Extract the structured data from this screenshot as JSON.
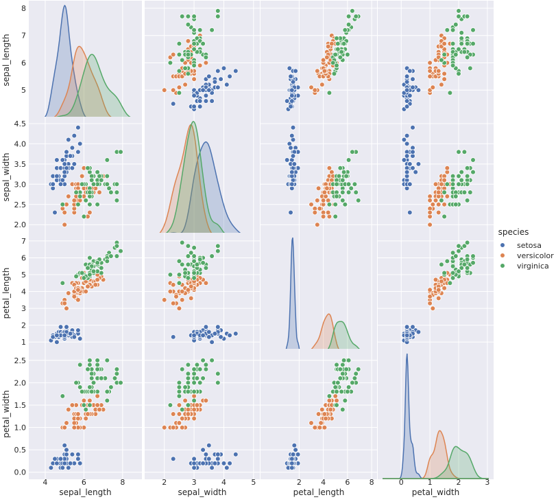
{
  "chart_data": {
    "type": "scatter",
    "variables": [
      "sepal_length",
      "sepal_width",
      "petal_length",
      "petal_width"
    ],
    "hue": "species",
    "legend": {
      "title": "species",
      "placement": "right",
      "entries": [
        "setosa",
        "versicolor",
        "virginica"
      ]
    },
    "grid": true,
    "colors": {
      "setosa": "#4c72b0",
      "versicolor": "#dd8452",
      "virginica": "#55a868",
      "panel_bg": "#eaeaf2"
    },
    "axes": {
      "sepal_length": {
        "ylim": [
          4.1,
          8.1
        ],
        "xlim": [
          3.4,
          8.75
        ],
        "ticks": [
          5,
          6,
          7,
          8
        ],
        "xticks": [
          4,
          6,
          8
        ]
      },
      "sepal_width": {
        "ylim": [
          1.8,
          4.55
        ],
        "xlim": [
          1.5,
          5.05
        ],
        "ticks": [
          2.0,
          2.5,
          3.0,
          3.5,
          4.0,
          4.5
        ],
        "xticks": [
          2,
          3,
          4,
          5
        ]
      },
      "petal_length": {
        "ylim": [
          0.6,
          7.2
        ],
        "xlim": [
          -0.8,
          8.05
        ],
        "ticks": [
          1,
          2,
          3,
          4,
          5,
          6,
          7
        ],
        "xticks": [
          2,
          4,
          6,
          8
        ]
      },
      "petal_width": {
        "ylim": [
          -0.05,
          2.65
        ],
        "xlim": [
          -0.65,
          3.05
        ],
        "ticks": [
          0.0,
          0.5,
          1.0,
          1.5,
          2.0,
          2.5
        ],
        "xticks": [
          0,
          1,
          2,
          3
        ]
      }
    },
    "tick_labels": {
      "sepal_length": [
        "5",
        "6",
        "7",
        "8"
      ],
      "sepal_width": [
        "2.0",
        "2.5",
        "3.0",
        "3.5",
        "4.0",
        "4.5"
      ],
      "petal_length": [
        "1",
        "2",
        "3",
        "4",
        "5",
        "6",
        "7"
      ],
      "petal_width": [
        "0.0",
        "0.5",
        "1.0",
        "1.5",
        "2.0",
        "2.5"
      ],
      "x_sepal_length": [
        "4",
        "6",
        "8"
      ],
      "x_sepal_width": [
        "2",
        "3",
        "4",
        "5"
      ],
      "x_petal_length": [
        "2",
        "4",
        "6",
        "8"
      ],
      "x_petal_width": [
        "0",
        "1",
        "2",
        "3"
      ]
    },
    "series": [
      {
        "name": "setosa",
        "points": [
          [
            5.1,
            3.5,
            1.4,
            0.2
          ],
          [
            4.9,
            3.0,
            1.4,
            0.2
          ],
          [
            4.7,
            3.2,
            1.3,
            0.2
          ],
          [
            4.6,
            3.1,
            1.5,
            0.2
          ],
          [
            5.0,
            3.6,
            1.4,
            0.2
          ],
          [
            5.4,
            3.9,
            1.7,
            0.4
          ],
          [
            4.6,
            3.4,
            1.4,
            0.3
          ],
          [
            5.0,
            3.4,
            1.5,
            0.2
          ],
          [
            4.4,
            2.9,
            1.4,
            0.2
          ],
          [
            4.9,
            3.1,
            1.5,
            0.1
          ],
          [
            5.4,
            3.7,
            1.5,
            0.2
          ],
          [
            4.8,
            3.4,
            1.6,
            0.2
          ],
          [
            4.8,
            3.0,
            1.4,
            0.1
          ],
          [
            4.3,
            3.0,
            1.1,
            0.1
          ],
          [
            5.8,
            4.0,
            1.2,
            0.2
          ],
          [
            5.7,
            4.4,
            1.5,
            0.4
          ],
          [
            5.4,
            3.9,
            1.3,
            0.4
          ],
          [
            5.1,
            3.5,
            1.4,
            0.3
          ],
          [
            5.7,
            3.8,
            1.7,
            0.3
          ],
          [
            5.1,
            3.8,
            1.5,
            0.3
          ],
          [
            5.4,
            3.4,
            1.7,
            0.2
          ],
          [
            5.1,
            3.7,
            1.5,
            0.4
          ],
          [
            4.6,
            3.6,
            1.0,
            0.2
          ],
          [
            5.1,
            3.3,
            1.7,
            0.5
          ],
          [
            4.8,
            3.4,
            1.9,
            0.2
          ],
          [
            5.0,
            3.0,
            1.6,
            0.2
          ],
          [
            5.0,
            3.4,
            1.6,
            0.4
          ],
          [
            5.2,
            3.5,
            1.5,
            0.2
          ],
          [
            5.2,
            3.4,
            1.4,
            0.2
          ],
          [
            4.7,
            3.2,
            1.6,
            0.2
          ],
          [
            4.8,
            3.1,
            1.6,
            0.2
          ],
          [
            5.4,
            3.4,
            1.5,
            0.4
          ],
          [
            5.2,
            4.1,
            1.5,
            0.1
          ],
          [
            5.5,
            4.2,
            1.4,
            0.2
          ],
          [
            4.9,
            3.1,
            1.5,
            0.2
          ],
          [
            5.0,
            3.2,
            1.2,
            0.2
          ],
          [
            5.5,
            3.5,
            1.3,
            0.2
          ],
          [
            4.9,
            3.6,
            1.4,
            0.1
          ],
          [
            4.4,
            3.0,
            1.3,
            0.2
          ],
          [
            5.1,
            3.4,
            1.5,
            0.2
          ],
          [
            5.0,
            3.5,
            1.3,
            0.3
          ],
          [
            4.5,
            2.3,
            1.3,
            0.3
          ],
          [
            4.4,
            3.2,
            1.3,
            0.2
          ],
          [
            5.0,
            3.5,
            1.6,
            0.6
          ],
          [
            5.1,
            3.8,
            1.9,
            0.4
          ],
          [
            4.8,
            3.0,
            1.4,
            0.3
          ],
          [
            5.1,
            3.8,
            1.6,
            0.2
          ],
          [
            4.6,
            3.2,
            1.4,
            0.2
          ],
          [
            5.3,
            3.7,
            1.5,
            0.2
          ],
          [
            5.0,
            3.3,
            1.4,
            0.2
          ]
        ]
      },
      {
        "name": "versicolor",
        "points": [
          [
            7.0,
            3.2,
            4.7,
            1.4
          ],
          [
            6.4,
            3.2,
            4.5,
            1.5
          ],
          [
            6.9,
            3.1,
            4.9,
            1.5
          ],
          [
            5.5,
            2.3,
            4.0,
            1.3
          ],
          [
            6.5,
            2.8,
            4.6,
            1.5
          ],
          [
            5.7,
            2.8,
            4.5,
            1.3
          ],
          [
            6.3,
            3.3,
            4.7,
            1.6
          ],
          [
            4.9,
            2.4,
            3.3,
            1.0
          ],
          [
            6.6,
            2.9,
            4.6,
            1.3
          ],
          [
            5.2,
            2.7,
            3.9,
            1.4
          ],
          [
            5.0,
            2.0,
            3.5,
            1.0
          ],
          [
            5.9,
            3.0,
            4.2,
            1.5
          ],
          [
            6.0,
            2.2,
            4.0,
            1.0
          ],
          [
            6.1,
            2.9,
            4.7,
            1.4
          ],
          [
            5.6,
            2.9,
            3.6,
            1.3
          ],
          [
            6.7,
            3.1,
            4.4,
            1.4
          ],
          [
            5.6,
            3.0,
            4.5,
            1.5
          ],
          [
            5.8,
            2.7,
            4.1,
            1.0
          ],
          [
            6.2,
            2.2,
            4.5,
            1.5
          ],
          [
            5.6,
            2.5,
            3.9,
            1.1
          ],
          [
            5.9,
            3.2,
            4.8,
            1.8
          ],
          [
            6.1,
            2.8,
            4.0,
            1.3
          ],
          [
            6.3,
            2.5,
            4.9,
            1.5
          ],
          [
            6.1,
            2.8,
            4.7,
            1.2
          ],
          [
            6.4,
            2.9,
            4.3,
            1.3
          ],
          [
            6.6,
            3.0,
            4.4,
            1.4
          ],
          [
            6.8,
            2.8,
            4.8,
            1.4
          ],
          [
            6.7,
            3.0,
            5.0,
            1.7
          ],
          [
            6.0,
            2.9,
            4.5,
            1.5
          ],
          [
            5.7,
            2.6,
            3.5,
            1.0
          ],
          [
            5.5,
            2.4,
            3.8,
            1.1
          ],
          [
            5.5,
            2.4,
            3.7,
            1.0
          ],
          [
            5.8,
            2.7,
            3.9,
            1.2
          ],
          [
            6.0,
            2.7,
            5.1,
            1.6
          ],
          [
            5.4,
            3.0,
            4.5,
            1.5
          ],
          [
            6.0,
            3.4,
            4.5,
            1.6
          ],
          [
            6.7,
            3.1,
            4.7,
            1.5
          ],
          [
            6.3,
            2.3,
            4.4,
            1.3
          ],
          [
            5.6,
            3.0,
            4.1,
            1.3
          ],
          [
            5.5,
            2.5,
            4.0,
            1.3
          ],
          [
            5.5,
            2.6,
            4.4,
            1.2
          ],
          [
            6.1,
            3.0,
            4.6,
            1.4
          ],
          [
            5.8,
            2.6,
            4.0,
            1.2
          ],
          [
            5.0,
            2.3,
            3.3,
            1.0
          ],
          [
            5.6,
            2.7,
            4.2,
            1.3
          ],
          [
            5.7,
            3.0,
            4.2,
            1.2
          ],
          [
            5.7,
            2.9,
            4.2,
            1.3
          ],
          [
            6.2,
            2.9,
            4.3,
            1.3
          ],
          [
            5.1,
            2.5,
            3.0,
            1.1
          ],
          [
            5.7,
            2.8,
            4.1,
            1.3
          ]
        ]
      },
      {
        "name": "virginica",
        "points": [
          [
            6.3,
            3.3,
            6.0,
            2.5
          ],
          [
            5.8,
            2.7,
            5.1,
            1.9
          ],
          [
            7.1,
            3.0,
            5.9,
            2.1
          ],
          [
            6.3,
            2.9,
            5.6,
            1.8
          ],
          [
            6.5,
            3.0,
            5.8,
            2.2
          ],
          [
            7.6,
            3.0,
            6.6,
            2.1
          ],
          [
            4.9,
            2.5,
            4.5,
            1.7
          ],
          [
            7.3,
            2.9,
            6.3,
            1.8
          ],
          [
            6.7,
            2.5,
            5.8,
            1.8
          ],
          [
            7.2,
            3.6,
            6.1,
            2.5
          ],
          [
            6.5,
            3.2,
            5.1,
            2.0
          ],
          [
            6.4,
            2.7,
            5.3,
            1.9
          ],
          [
            6.8,
            3.0,
            5.5,
            2.1
          ],
          [
            5.7,
            2.5,
            5.0,
            2.0
          ],
          [
            5.8,
            2.8,
            5.1,
            2.4
          ],
          [
            6.4,
            3.2,
            5.3,
            2.3
          ],
          [
            6.5,
            3.0,
            5.5,
            1.8
          ],
          [
            7.7,
            3.8,
            6.7,
            2.2
          ],
          [
            7.7,
            2.6,
            6.9,
            2.3
          ],
          [
            6.0,
            2.2,
            5.0,
            1.5
          ],
          [
            6.9,
            3.2,
            5.7,
            2.3
          ],
          [
            5.6,
            2.8,
            4.9,
            2.0
          ],
          [
            7.7,
            2.8,
            6.7,
            2.0
          ],
          [
            6.3,
            2.7,
            4.9,
            1.8
          ],
          [
            6.7,
            3.3,
            5.7,
            2.1
          ],
          [
            7.2,
            3.2,
            6.0,
            1.8
          ],
          [
            6.2,
            2.8,
            4.8,
            1.8
          ],
          [
            6.1,
            3.0,
            4.9,
            1.8
          ],
          [
            6.4,
            2.8,
            5.6,
            2.1
          ],
          [
            7.2,
            3.0,
            5.8,
            1.6
          ],
          [
            7.4,
            2.8,
            6.1,
            1.9
          ],
          [
            7.9,
            3.8,
            6.4,
            2.0
          ],
          [
            6.4,
            2.8,
            5.6,
            2.2
          ],
          [
            6.3,
            2.8,
            5.1,
            1.5
          ],
          [
            6.1,
            2.6,
            5.6,
            1.4
          ],
          [
            7.7,
            3.0,
            6.1,
            2.3
          ],
          [
            6.3,
            3.4,
            5.6,
            2.4
          ],
          [
            6.4,
            3.1,
            5.5,
            1.8
          ],
          [
            6.0,
            3.0,
            4.8,
            1.8
          ],
          [
            6.9,
            3.1,
            5.4,
            2.1
          ],
          [
            6.7,
            3.1,
            5.6,
            2.4
          ],
          [
            6.9,
            3.1,
            5.1,
            2.3
          ],
          [
            5.8,
            2.7,
            5.1,
            1.9
          ],
          [
            6.8,
            3.2,
            5.9,
            2.3
          ],
          [
            6.7,
            3.3,
            5.7,
            2.5
          ],
          [
            6.7,
            3.0,
            5.2,
            2.3
          ],
          [
            6.3,
            2.5,
            5.0,
            1.9
          ],
          [
            6.5,
            3.0,
            5.2,
            2.0
          ],
          [
            6.2,
            3.4,
            5.4,
            2.3
          ],
          [
            5.9,
            3.0,
            5.1,
            1.8
          ]
        ]
      }
    ]
  }
}
